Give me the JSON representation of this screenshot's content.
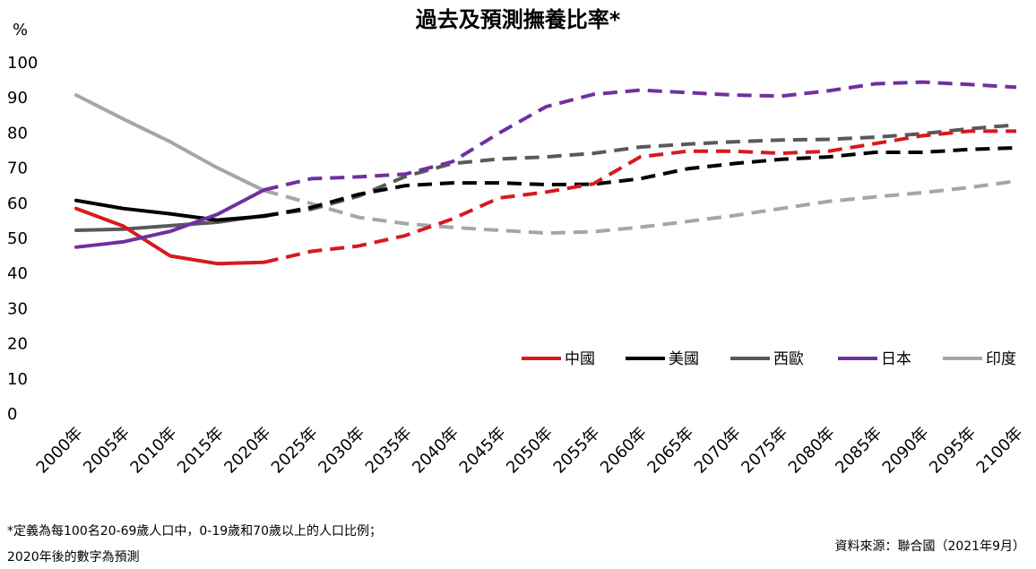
{
  "chart_data": {
    "type": "line",
    "title": "過去及預測撫養比率*",
    "ylabel": "%",
    "xlabel": "",
    "ylim": [
      0,
      100
    ],
    "y_ticks": [
      "0",
      "10",
      "20",
      "30",
      "40",
      "50",
      "60",
      "70",
      "80",
      "90",
      "100"
    ],
    "categories": [
      "2000年",
      "2005年",
      "2010年",
      "2015年",
      "2020年",
      "2025年",
      "2030年",
      "2035年",
      "2040年",
      "2045年",
      "2050年",
      "2055年",
      "2060年",
      "2065年",
      "2070年",
      "2075年",
      "2080年",
      "2085年",
      "2090年",
      "2095年",
      "2100年"
    ],
    "projection_start": "2020年",
    "grid": false,
    "legend_position": "right",
    "series": [
      {
        "name": "中國",
        "color": "#d71920",
        "values": [
          58.5,
          53.5,
          45,
          42.8,
          43.2,
          46.3,
          47.8,
          50.8,
          55.5,
          61.5,
          63.2,
          65.5,
          73.2,
          74.8,
          74.8,
          74.2,
          74.8,
          77,
          79.2,
          80.5,
          80.5
        ]
      },
      {
        "name": "美國",
        "color": "#000000",
        "values": [
          60.8,
          58.5,
          57,
          55.2,
          56.3,
          58.8,
          62.5,
          65,
          65.8,
          65.8,
          65.3,
          65.4,
          67,
          69.8,
          71.3,
          72.5,
          73.2,
          74.5,
          74.5,
          75.3,
          75.8
        ]
      },
      {
        "name": "西歐",
        "color": "#595959",
        "values": [
          52.3,
          52.6,
          53.6,
          54.6,
          56.5,
          58.3,
          62,
          67.6,
          71.3,
          72.6,
          73.2,
          74.2,
          76,
          76.8,
          77.5,
          78,
          78.2,
          78.8,
          79.8,
          81.2,
          82.3
        ]
      },
      {
        "name": "日本",
        "color": "#7030a0",
        "values": [
          47.5,
          49,
          52,
          56.8,
          63.8,
          67,
          67.5,
          68.3,
          71.8,
          80,
          87.5,
          91,
          92.2,
          91.5,
          90.8,
          90.5,
          92,
          94,
          94.5,
          93.8,
          93
        ]
      },
      {
        "name": "印度",
        "color": "#a6a6a6",
        "values": [
          90.8,
          84,
          77.5,
          70.1,
          63.6,
          59.9,
          56,
          54.2,
          53.1,
          52.3,
          51.5,
          51.9,
          53.2,
          54.8,
          56.5,
          58.5,
          60.5,
          61.8,
          63,
          64.5,
          66.3
        ]
      }
    ]
  },
  "footer": {
    "note_line1": "*定義為每100名20-69歲人口中，0-19歲和70歲以上的人口比例；",
    "note_line2": "2020年後的數字為預測",
    "source": "資料來源：聯合國（2021年9月）"
  }
}
